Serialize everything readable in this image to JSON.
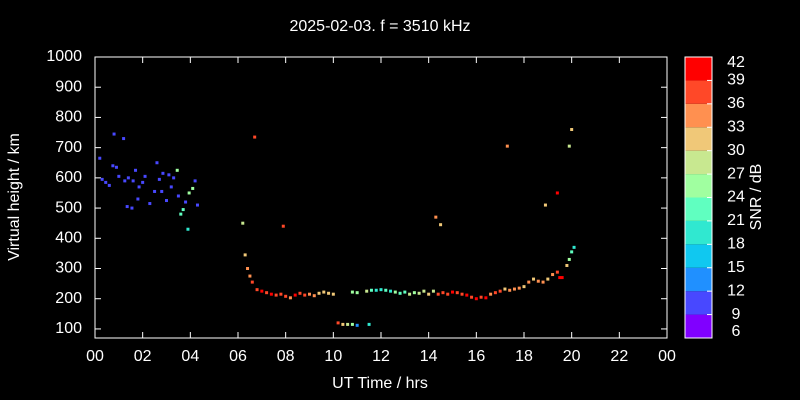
{
  "chart_data": {
    "type": "scatter",
    "title": "2025-02-03. f = 3510 kHz",
    "x_label": "UT Time / hrs",
    "y_label": "Virtual height / km",
    "colorbar_label": "SNR / dB",
    "xlim": [
      0,
      24
    ],
    "ylim": [
      70,
      1000
    ],
    "xticks": [
      {
        "value": 0,
        "label": "00"
      },
      {
        "value": 2,
        "label": "02"
      },
      {
        "value": 4,
        "label": "04"
      },
      {
        "value": 6,
        "label": "06"
      },
      {
        "value": 8,
        "label": "08"
      },
      10,
      12,
      14,
      16,
      18,
      20,
      22,
      {
        "value": 24,
        "label": "00"
      }
    ],
    "yticks": [
      100,
      200,
      300,
      400,
      500,
      600,
      700,
      800,
      900,
      1000
    ],
    "clim": [
      6,
      42
    ],
    "cticks": [
      6,
      9,
      12,
      15,
      18,
      21,
      24,
      27,
      30,
      33,
      36,
      39,
      42
    ],
    "colorbar_colors": [
      "#8000ff",
      "#4848ff",
      "#2090ff",
      "#10c8f0",
      "#30e8d0",
      "#60ffc0",
      "#a0ffa0",
      "#c8e890",
      "#f0c878",
      "#ff9050",
      "#ff4828",
      "#ff0000"
    ],
    "x": [
      0.2,
      0.3,
      0.45,
      0.6,
      0.75,
      0.8,
      0.9,
      1.0,
      1.2,
      1.25,
      1.35,
      1.4,
      1.55,
      1.6,
      1.7,
      1.8,
      1.85,
      2.0,
      2.1,
      2.3,
      2.5,
      2.6,
      2.7,
      2.8,
      2.85,
      3.0,
      3.1,
      3.2,
      3.3,
      3.45,
      3.5,
      3.6,
      3.7,
      3.8,
      3.9,
      3.95,
      4.1,
      4.2,
      4.3,
      6.2,
      6.3,
      6.4,
      6.5,
      6.6,
      6.7,
      7.9,
      6.8,
      7.0,
      7.2,
      7.4,
      7.6,
      7.8,
      8.0,
      8.2,
      8.4,
      8.6,
      8.8,
      9.0,
      9.2,
      9.4,
      9.6,
      9.8,
      10.0,
      10.8,
      11.0,
      11.4,
      11.6,
      11.8,
      12.0,
      12.2,
      12.4,
      12.6,
      12.8,
      13.0,
      13.2,
      13.4,
      13.6,
      13.8,
      14.0,
      14.2,
      14.4,
      14.6,
      14.8,
      15.0,
      15.2,
      15.4,
      15.6,
      15.8,
      16.0,
      16.2,
      16.4,
      16.6,
      16.8,
      17.0,
      17.2,
      17.4,
      17.6,
      17.8,
      18.0,
      18.2,
      18.4,
      18.6,
      18.8,
      19.0,
      19.2,
      19.4,
      19.5,
      19.6,
      19.8,
      19.9,
      20.0,
      20.1,
      10.2,
      10.4,
      10.6,
      10.8,
      11.0,
      11.5,
      14.3,
      14.5,
      17.3,
      18.9,
      19.4,
      19.9,
      20.0
    ],
    "values": [
      665,
      595,
      585,
      575,
      640,
      745,
      635,
      605,
      730,
      590,
      505,
      600,
      500,
      590,
      625,
      530,
      570,
      585,
      605,
      515,
      555,
      650,
      595,
      555,
      615,
      525,
      610,
      570,
      600,
      625,
      540,
      480,
      495,
      520,
      430,
      550,
      565,
      590,
      510,
      450,
      345,
      300,
      275,
      255,
      735,
      440,
      230,
      225,
      220,
      215,
      212,
      215,
      208,
      203,
      212,
      218,
      212,
      215,
      210,
      218,
      222,
      218,
      215,
      222,
      220,
      225,
      228,
      228,
      230,
      228,
      225,
      222,
      218,
      222,
      215,
      220,
      218,
      225,
      215,
      225,
      215,
      220,
      215,
      222,
      220,
      215,
      212,
      205,
      200,
      205,
      203,
      215,
      220,
      225,
      232,
      228,
      232,
      235,
      240,
      255,
      265,
      258,
      255,
      265,
      280,
      288,
      270,
      270,
      310,
      330,
      355,
      370,
      120,
      115,
      115,
      115,
      112,
      115,
      470,
      445,
      705,
      510,
      550,
      705,
      760
    ],
    "snr": [
      11,
      11,
      11,
      11,
      11,
      11,
      11,
      11,
      11,
      11,
      11,
      11,
      11,
      11,
      11,
      11,
      11,
      11,
      11,
      11,
      11,
      11,
      11,
      11,
      11,
      11,
      11,
      11,
      11,
      24,
      11,
      21,
      21,
      11,
      18,
      25,
      26,
      11,
      11,
      27,
      30,
      33,
      34,
      38,
      36,
      36,
      38,
      39,
      37,
      40,
      38,
      36,
      37,
      34,
      39,
      36,
      38,
      33,
      35,
      31,
      30,
      31,
      32,
      26,
      25,
      28,
      22,
      20,
      19,
      21,
      18,
      25,
      22,
      23,
      27,
      24,
      28,
      29,
      31,
      27,
      36,
      38,
      37,
      39,
      36,
      38,
      39,
      36,
      40,
      37,
      39,
      34,
      37,
      36,
      32,
      35,
      34,
      33,
      31,
      34,
      30,
      33,
      35,
      31,
      33,
      36,
      40,
      39,
      30,
      25,
      21,
      19,
      38,
      31,
      27,
      25,
      12,
      18,
      33,
      30,
      34,
      31,
      40,
      29,
      31
    ]
  }
}
